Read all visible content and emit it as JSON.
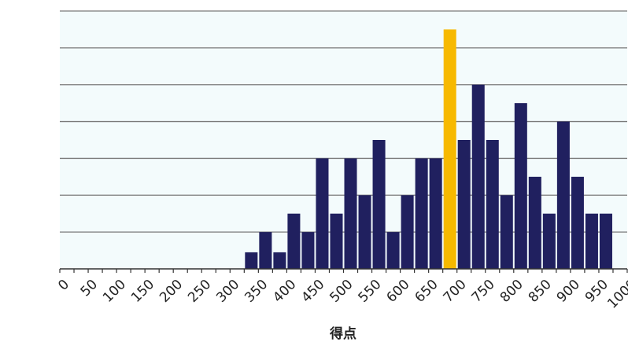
{
  "chart_data": {
    "type": "bar",
    "xlabel": "得点",
    "ylabel": "",
    "title": "",
    "x_ticks": [
      0,
      50,
      100,
      150,
      200,
      250,
      300,
      350,
      400,
      450,
      500,
      550,
      600,
      650,
      700,
      750,
      800,
      850,
      900,
      950,
      1000
    ],
    "xlim": [
      0,
      1000
    ],
    "ylim": [
      0,
      7
    ],
    "bin_width": 25,
    "grid": true,
    "legend": "none",
    "bins": [
      {
        "start": 325,
        "value": 0.45
      },
      {
        "start": 350,
        "value": 1
      },
      {
        "start": 375,
        "value": 0.45
      },
      {
        "start": 400,
        "value": 1.5
      },
      {
        "start": 425,
        "value": 1
      },
      {
        "start": 450,
        "value": 3
      },
      {
        "start": 475,
        "value": 1.5
      },
      {
        "start": 500,
        "value": 3
      },
      {
        "start": 525,
        "value": 2
      },
      {
        "start": 550,
        "value": 3.5
      },
      {
        "start": 575,
        "value": 1
      },
      {
        "start": 600,
        "value": 2
      },
      {
        "start": 625,
        "value": 3
      },
      {
        "start": 650,
        "value": 3
      },
      {
        "start": 675,
        "value": 6.5,
        "highlight": true
      },
      {
        "start": 700,
        "value": 3.5
      },
      {
        "start": 725,
        "value": 5
      },
      {
        "start": 750,
        "value": 3.5
      },
      {
        "start": 775,
        "value": 2
      },
      {
        "start": 800,
        "value": 4.5
      },
      {
        "start": 825,
        "value": 2.5
      },
      {
        "start": 850,
        "value": 1.5
      },
      {
        "start": 875,
        "value": 4
      },
      {
        "start": 900,
        "value": 2.5
      },
      {
        "start": 925,
        "value": 1.5
      },
      {
        "start": 950,
        "value": 1.5
      }
    ],
    "colors": {
      "bar": "#20205f",
      "highlight": "#f7b900",
      "plot_background": "#f3fbfc",
      "gridline": "#7a7a7a",
      "axis": "#333333"
    }
  }
}
